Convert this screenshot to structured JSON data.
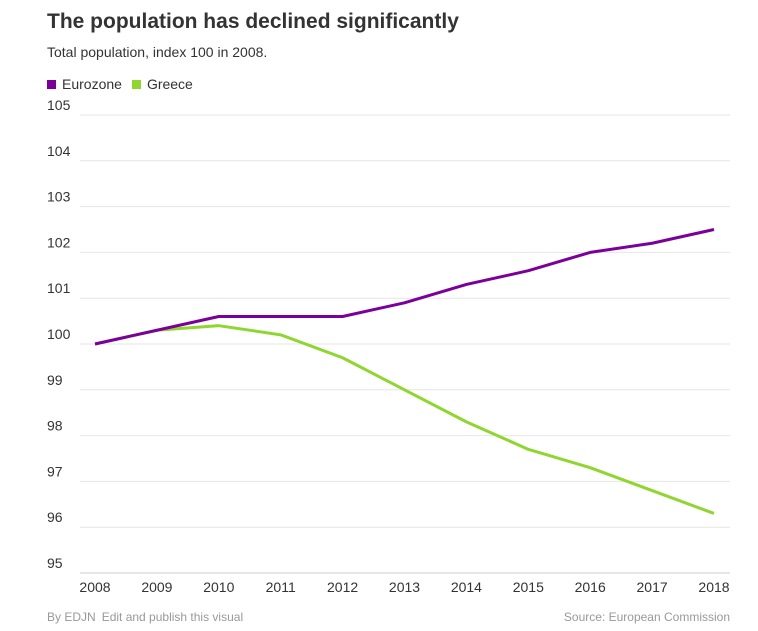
{
  "chart_data": {
    "type": "line",
    "title": "The population has declined significantly",
    "subtitle": "Total population, index 100 in 2008.",
    "x": [
      "2008",
      "2009",
      "2010",
      "2011",
      "2012",
      "2013",
      "2014",
      "2015",
      "2016",
      "2017",
      "2018"
    ],
    "yticks": [
      "95",
      "96",
      "97",
      "98",
      "99",
      "100",
      "101",
      "102",
      "103",
      "104",
      "105"
    ],
    "ylim": [
      95,
      105
    ],
    "grid": true,
    "legend_placement": "top-left",
    "series": [
      {
        "name": "Eurozone",
        "color": "#7b0099",
        "values": [
          100,
          100.3,
          100.6,
          100.6,
          100.6,
          100.9,
          101.3,
          101.6,
          102.0,
          102.2,
          102.5
        ]
      },
      {
        "name": "Greece",
        "color": "#8fd630",
        "values": [
          100,
          100.3,
          100.4,
          100.2,
          99.7,
          99.0,
          98.3,
          97.7,
          97.3,
          96.8,
          96.3
        ]
      }
    ]
  },
  "footer": {
    "by": "By EDJN",
    "edit": "Edit and publish this visual",
    "source": "Source: European Commission"
  }
}
